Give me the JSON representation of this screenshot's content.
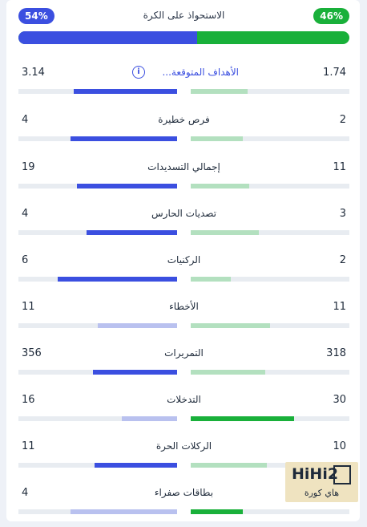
{
  "possession": {
    "title": "الاستحواذ على الكرة",
    "left_label": "54%",
    "right_label": "46%",
    "left_pct": 54,
    "right_pct": 46,
    "left_color": "#3b4fe0",
    "right_color": "#19b03a"
  },
  "stats": [
    {
      "label": "الأهداف المتوقعة...",
      "left": "3.14",
      "right": "1.74",
      "left_fill": 0.65,
      "right_fill": 0.36,
      "left_strong": true,
      "right_strong": false,
      "has_info": true
    },
    {
      "label": "فرص خطيرة",
      "left": "4",
      "right": "2",
      "left_fill": 0.67,
      "right_fill": 0.33,
      "left_strong": true,
      "right_strong": false
    },
    {
      "label": "إجمالي التسديدات",
      "left": "19",
      "right": "11",
      "left_fill": 0.63,
      "right_fill": 0.37,
      "left_strong": true,
      "right_strong": false
    },
    {
      "label": "تصديات الحارس",
      "left": "4",
      "right": "3",
      "left_fill": 0.57,
      "right_fill": 0.43,
      "left_strong": true,
      "right_strong": false
    },
    {
      "label": "الركنيات",
      "left": "6",
      "right": "2",
      "left_fill": 0.75,
      "right_fill": 0.25,
      "left_strong": true,
      "right_strong": false
    },
    {
      "label": "الأخطاء",
      "left": "11",
      "right": "11",
      "left_fill": 0.5,
      "right_fill": 0.5,
      "left_strong": false,
      "right_strong": false
    },
    {
      "label": "التمريرات",
      "left": "356",
      "right": "318",
      "left_fill": 0.53,
      "right_fill": 0.47,
      "left_strong": true,
      "right_strong": false
    },
    {
      "label": "التدخلات",
      "left": "16",
      "right": "30",
      "left_fill": 0.35,
      "right_fill": 0.65,
      "left_strong": false,
      "right_strong": true
    },
    {
      "label": "الركلات الحرة",
      "left": "11",
      "right": "10",
      "left_fill": 0.52,
      "right_fill": 0.48,
      "left_strong": true,
      "right_strong": false
    },
    {
      "label": "بطاقات صفراء",
      "left": "4",
      "right": "",
      "left_fill": 0.67,
      "right_fill": 0.33,
      "left_strong": false,
      "right_strong": true
    }
  ],
  "colors": {
    "blue_strong": "#3b4fe0",
    "blue_weak": "#b9c1ef",
    "green_strong": "#19b03a",
    "green_weak": "#b3e0bf"
  },
  "watermark": {
    "brand": "HiHi2",
    "subtitle": "هاي كورة"
  }
}
